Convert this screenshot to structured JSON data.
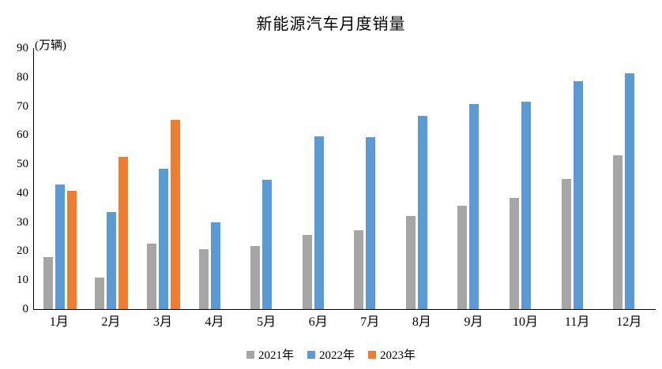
{
  "title": "新能源汽车月度销量",
  "y_axis": {
    "unit_label": "(万辆)",
    "tick_labels": [
      "0",
      "10",
      "20",
      "30",
      "40",
      "50",
      "60",
      "70",
      "80",
      "90"
    ]
  },
  "legend": {
    "items": [
      {
        "label": "2021年",
        "color": "#A6A6A6"
      },
      {
        "label": "2022年",
        "color": "#5B9BD5"
      },
      {
        "label": "2023年",
        "color": "#ED7D31"
      }
    ]
  },
  "chart_data": {
    "type": "bar",
    "title": "新能源汽车月度销量",
    "categories": [
      "1月",
      "2月",
      "3月",
      "4月",
      "5月",
      "6月",
      "7月",
      "8月",
      "9月",
      "10月",
      "11月",
      "12月"
    ],
    "series": [
      {
        "name": "2021年",
        "color": "#A6A6A6",
        "values": [
          17.9,
          11.0,
          22.6,
          20.6,
          21.7,
          25.6,
          27.1,
          32.1,
          35.7,
          38.3,
          45.0,
          53.1
        ]
      },
      {
        "name": "2022年",
        "color": "#5B9BD5",
        "values": [
          43.1,
          33.4,
          48.4,
          29.9,
          44.7,
          59.6,
          59.3,
          66.6,
          70.8,
          71.4,
          78.6,
          81.4
        ]
      },
      {
        "name": "2023年",
        "color": "#ED7D31",
        "values": [
          40.8,
          52.5,
          65.3,
          null,
          null,
          null,
          null,
          null,
          null,
          null,
          null,
          null
        ]
      }
    ],
    "xlabel": "",
    "ylabel": "(万辆)",
    "ylim": [
      0,
      90
    ],
    "ytick_step": 10,
    "grid": false,
    "legend_position": "bottom",
    "axis_color": "#000000",
    "background_color": "#FFFFFF"
  }
}
